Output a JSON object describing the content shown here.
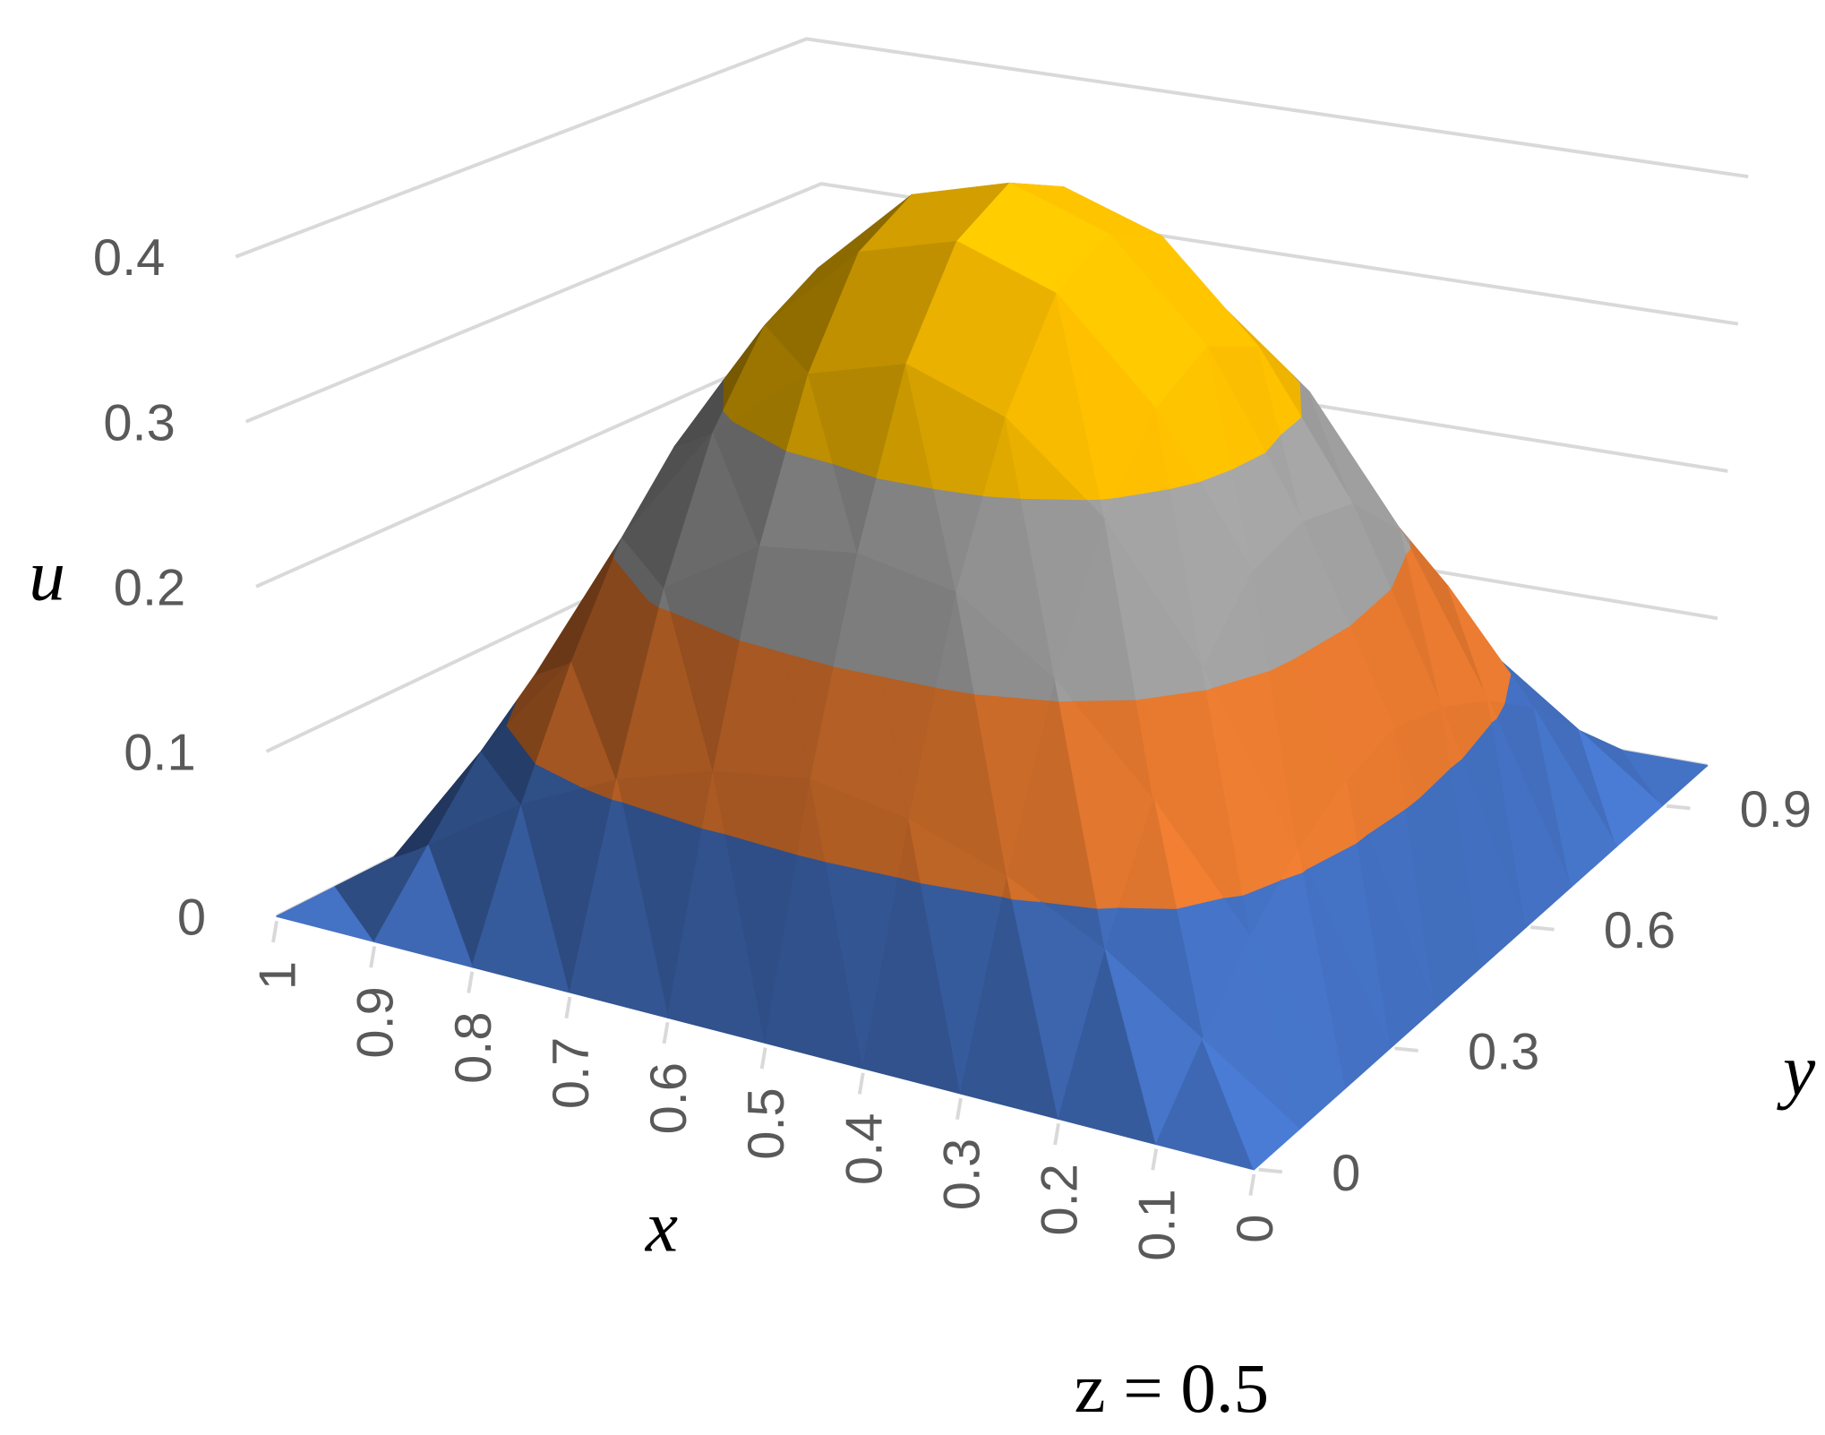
{
  "chart_data": {
    "type": "surface",
    "annotation": "z = 0.5",
    "x_label": "x",
    "y_label": "y",
    "z_label": "u",
    "x": [
      0,
      0.1,
      0.2,
      0.3,
      0.4,
      0.5,
      0.6,
      0.7,
      0.8,
      0.9,
      1
    ],
    "y": [
      0,
      0.1,
      0.2,
      0.3,
      0.4,
      0.5,
      0.6,
      0.7,
      0.8,
      0.9,
      1
    ],
    "z": [
      [
        0,
        0,
        0,
        0,
        0,
        0,
        0,
        0,
        0,
        0,
        0
      ],
      [
        0,
        0.04,
        0.08,
        0.11,
        0.13,
        0.14,
        0.13,
        0.11,
        0.08,
        0.04,
        0
      ],
      [
        0,
        0.08,
        0.15,
        0.21,
        0.25,
        0.26,
        0.25,
        0.21,
        0.15,
        0.08,
        0
      ],
      [
        0,
        0.11,
        0.21,
        0.29,
        0.34,
        0.36,
        0.34,
        0.29,
        0.21,
        0.11,
        0
      ],
      [
        0,
        0.13,
        0.25,
        0.34,
        0.4,
        0.42,
        0.4,
        0.34,
        0.25,
        0.13,
        0
      ],
      [
        0,
        0.14,
        0.26,
        0.36,
        0.42,
        0.44,
        0.42,
        0.36,
        0.26,
        0.14,
        0
      ],
      [
        0,
        0.13,
        0.25,
        0.34,
        0.4,
        0.42,
        0.4,
        0.34,
        0.25,
        0.13,
        0
      ],
      [
        0,
        0.11,
        0.21,
        0.29,
        0.34,
        0.36,
        0.34,
        0.29,
        0.21,
        0.11,
        0
      ],
      [
        0,
        0.08,
        0.15,
        0.21,
        0.25,
        0.26,
        0.25,
        0.21,
        0.15,
        0.08,
        0
      ],
      [
        0,
        0.04,
        0.08,
        0.11,
        0.13,
        0.14,
        0.13,
        0.11,
        0.08,
        0.04,
        0
      ],
      [
        0,
        0,
        0,
        0,
        0,
        0,
        0,
        0,
        0,
        0,
        0
      ]
    ],
    "xlim": [
      0,
      1
    ],
    "ylim": [
      0,
      1
    ],
    "zlim": [
      0,
      0.4
    ],
    "xticks": [
      0,
      0.1,
      0.2,
      0.3,
      0.4,
      0.5,
      0.6,
      0.7,
      0.8,
      0.9,
      1
    ],
    "yticks": [
      0,
      0.3,
      0.6,
      0.9
    ],
    "zticks": [
      0,
      0.1,
      0.2,
      0.3,
      0.4
    ],
    "band_colors": [
      "#4472c4",
      "#ed7d31",
      "#a5a5a5",
      "#ffc000"
    ],
    "grid": true
  }
}
